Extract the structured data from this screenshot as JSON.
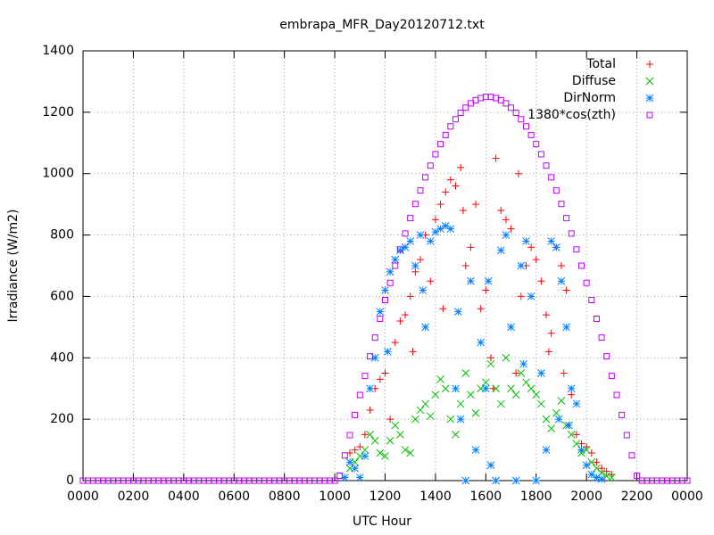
{
  "chart_data": {
    "type": "scatter",
    "title": "embrapa_MFR_Day20120712.txt",
    "xlabel": "UTC Hour",
    "ylabel": "Irradiance (W/m2)",
    "xlim": [
      0,
      24
    ],
    "ylim": [
      0,
      1400
    ],
    "xticks": [
      {
        "value": 0,
        "label": "0000"
      },
      {
        "value": 2,
        "label": "0200"
      },
      {
        "value": 4,
        "label": "0400"
      },
      {
        "value": 6,
        "label": "0600"
      },
      {
        "value": 8,
        "label": "0800"
      },
      {
        "value": 10,
        "label": "1000"
      },
      {
        "value": 12,
        "label": "1200"
      },
      {
        "value": 14,
        "label": "1400"
      },
      {
        "value": 16,
        "label": "1600"
      },
      {
        "value": 18,
        "label": "1800"
      },
      {
        "value": 20,
        "label": "2000"
      },
      {
        "value": 22,
        "label": "2200"
      },
      {
        "value": 24,
        "label": "0000"
      }
    ],
    "yticks": [
      0,
      200,
      400,
      600,
      800,
      1000,
      1200,
      1400
    ],
    "grid": true,
    "legend": "top-right",
    "series": [
      {
        "name": "Total",
        "color": "#ff0000",
        "marker": "plus",
        "x": [
          10.6,
          10.8,
          11.0,
          11.2,
          11.4,
          11.6,
          11.8,
          12.0,
          12.2,
          12.4,
          12.6,
          12.8,
          13.0,
          13.2,
          13.4,
          13.6,
          13.8,
          14.0,
          14.2,
          14.4,
          14.6,
          14.8,
          15.0,
          15.2,
          15.4,
          15.6,
          15.8,
          16.0,
          16.2,
          16.4,
          16.6,
          16.8,
          17.0,
          17.2,
          17.4,
          17.6,
          17.8,
          18.0,
          18.2,
          18.4,
          18.6,
          18.8,
          19.0,
          19.2,
          19.4,
          19.6,
          19.8,
          20.0,
          20.2,
          20.4,
          20.6,
          20.8,
          21.0,
          13.1,
          14.3,
          15.1,
          16.3,
          17.3,
          18.5,
          19.1
        ],
        "values": [
          90,
          100,
          110,
          150,
          230,
          300,
          330,
          350,
          200,
          450,
          520,
          540,
          600,
          680,
          720,
          800,
          650,
          850,
          900,
          940,
          980,
          960,
          1020,
          700,
          760,
          900,
          560,
          620,
          400,
          1050,
          880,
          850,
          820,
          350,
          600,
          700,
          760,
          720,
          650,
          540,
          480,
          760,
          700,
          620,
          280,
          150,
          120,
          110,
          90,
          60,
          40,
          30,
          20,
          420,
          560,
          880,
          300,
          1000,
          420,
          350
        ]
      },
      {
        "name": "Diffuse",
        "color": "#00c000",
        "marker": "cross",
        "x": [
          10.6,
          10.8,
          11.0,
          11.2,
          11.4,
          11.6,
          11.8,
          12.0,
          12.2,
          12.4,
          12.6,
          12.8,
          13.0,
          13.2,
          13.4,
          13.6,
          13.8,
          14.0,
          14.2,
          14.4,
          14.6,
          14.8,
          15.0,
          15.2,
          15.4,
          15.6,
          15.8,
          16.0,
          16.2,
          16.4,
          16.6,
          16.8,
          17.0,
          17.2,
          17.4,
          17.6,
          17.8,
          18.0,
          18.2,
          18.4,
          18.6,
          18.8,
          19.0,
          19.2,
          19.4,
          19.6,
          19.8,
          20.0,
          20.2,
          20.4,
          20.6,
          20.8,
          21.0
        ],
        "values": [
          40,
          60,
          80,
          100,
          150,
          130,
          90,
          80,
          130,
          180,
          150,
          100,
          90,
          200,
          230,
          250,
          210,
          280,
          330,
          300,
          200,
          150,
          250,
          350,
          280,
          220,
          300,
          320,
          380,
          300,
          250,
          400,
          300,
          280,
          350,
          320,
          300,
          280,
          250,
          200,
          170,
          220,
          260,
          180,
          150,
          120,
          90,
          100,
          60,
          40,
          25,
          15,
          10
        ]
      },
      {
        "name": "DirNorm",
        "color": "#0080ff",
        "marker": "star",
        "x": [
          10.4,
          10.6,
          10.8,
          11.0,
          11.2,
          11.4,
          11.6,
          11.8,
          12.0,
          12.2,
          12.4,
          12.6,
          12.8,
          13.0,
          13.2,
          13.4,
          13.6,
          13.8,
          14.0,
          14.2,
          14.4,
          14.6,
          14.8,
          15.0,
          15.2,
          15.4,
          15.6,
          15.8,
          16.0,
          16.2,
          16.4,
          16.6,
          16.8,
          17.0,
          17.2,
          17.4,
          17.6,
          17.8,
          18.0,
          18.2,
          18.4,
          18.6,
          18.8,
          19.0,
          19.2,
          19.4,
          19.6,
          19.8,
          20.0,
          20.2,
          20.4,
          20.6,
          12.1,
          13.5,
          14.9,
          16.1,
          17.5,
          18.9,
          19.3
        ],
        "values": [
          10,
          60,
          40,
          10,
          80,
          300,
          400,
          550,
          620,
          680,
          720,
          750,
          760,
          780,
          700,
          800,
          500,
          780,
          810,
          820,
          830,
          820,
          300,
          200,
          0,
          650,
          100,
          450,
          300,
          50,
          0,
          750,
          800,
          500,
          0,
          700,
          780,
          600,
          0,
          350,
          100,
          780,
          760,
          650,
          500,
          300,
          250,
          100,
          50,
          20,
          10,
          5,
          420,
          620,
          550,
          650,
          380,
          200,
          180
        ]
      },
      {
        "name": "1380*cos(zth)",
        "color": "#c000ff",
        "marker": "square",
        "x": [
          0,
          0.2,
          0.4,
          0.6,
          0.8,
          1.0,
          1.2,
          1.4,
          1.6,
          1.8,
          2.0,
          2.2,
          2.4,
          2.6,
          2.8,
          3.0,
          3.2,
          3.4,
          3.6,
          3.8,
          4.0,
          4.2,
          4.4,
          4.6,
          4.8,
          5.0,
          5.2,
          5.4,
          5.6,
          5.8,
          6.0,
          6.2,
          6.4,
          6.6,
          6.8,
          7.0,
          7.2,
          7.4,
          7.6,
          7.8,
          8.0,
          8.2,
          8.4,
          8.6,
          8.8,
          9.0,
          9.2,
          9.4,
          9.6,
          9.8,
          10.0,
          10.2,
          10.4,
          10.6,
          10.8,
          11.0,
          11.2,
          11.4,
          11.6,
          11.8,
          12.0,
          12.2,
          12.4,
          12.6,
          12.8,
          13.0,
          13.2,
          13.4,
          13.6,
          13.8,
          14.0,
          14.2,
          14.4,
          14.6,
          14.8,
          15.0,
          15.2,
          15.4,
          15.6,
          15.8,
          16.0,
          16.2,
          16.4,
          16.6,
          16.8,
          17.0,
          17.2,
          17.4,
          17.6,
          17.8,
          18.0,
          18.2,
          18.4,
          18.6,
          18.8,
          19.0,
          19.2,
          19.4,
          19.6,
          19.8,
          20.0,
          20.2,
          20.4,
          20.6,
          20.8,
          21.0,
          21.2,
          21.4,
          21.6,
          21.8,
          22.0,
          22.2,
          22.4,
          22.6,
          22.8,
          23.0,
          23.2,
          23.4,
          23.6,
          23.8,
          24.0
        ],
        "values": [
          0,
          0,
          0,
          0,
          0,
          0,
          0,
          0,
          0,
          0,
          0,
          0,
          0,
          0,
          0,
          0,
          0,
          0,
          0,
          0,
          0,
          0,
          0,
          0,
          0,
          0,
          0,
          0,
          0,
          0,
          0,
          0,
          0,
          0,
          0,
          0,
          0,
          0,
          0,
          0,
          0,
          0,
          0,
          0,
          0,
          0,
          0,
          0,
          0,
          0,
          0,
          16,
          82,
          148,
          214,
          279,
          341,
          405,
          466,
          527,
          588,
          644,
          700,
          753,
          805,
          855,
          901,
          945,
          988,
          1026,
          1063,
          1096,
          1126,
          1154,
          1177,
          1198,
          1215,
          1229,
          1239,
          1246,
          1250,
          1250,
          1246,
          1239,
          1229,
          1215,
          1198,
          1177,
          1154,
          1126,
          1096,
          1063,
          1026,
          988,
          945,
          901,
          855,
          805,
          753,
          700,
          644,
          588,
          527,
          466,
          405,
          341,
          279,
          214,
          148,
          82,
          16,
          0,
          0,
          0,
          0,
          0,
          0,
          0,
          0,
          0,
          0
        ]
      }
    ]
  }
}
